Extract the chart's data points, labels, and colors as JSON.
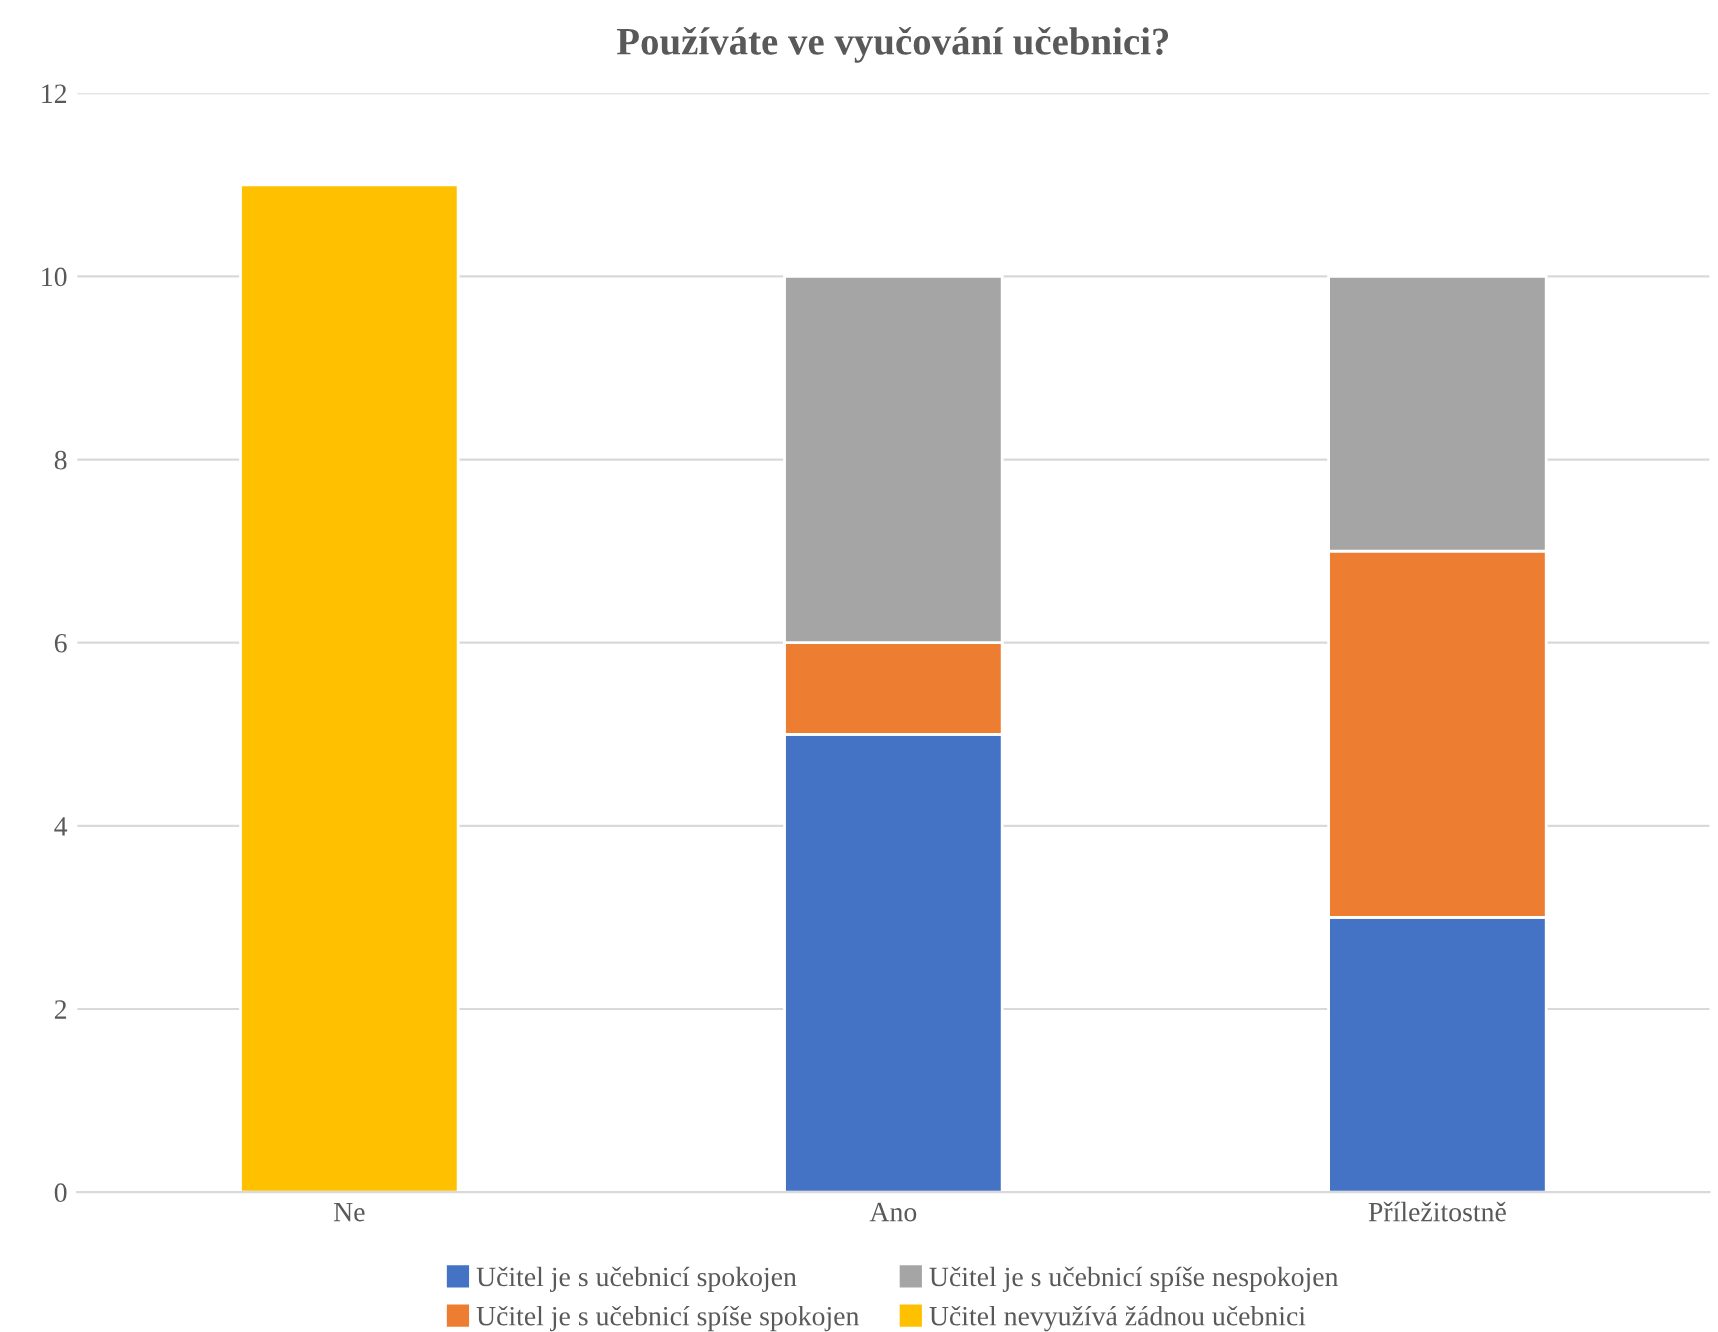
{
  "chart_data": {
    "type": "bar",
    "title": "Používáte ve vyučování učebnici?",
    "stacked": true,
    "categories": [
      "Ne",
      "Ano",
      "Příležitostně"
    ],
    "series": [
      {
        "name": "Učitel je s učebnicí spokojen",
        "color": "#4472c4",
        "values": [
          null,
          5,
          3
        ]
      },
      {
        "name": "Učitel je s učebnicí spíše spokojen",
        "color": "#ed7d31",
        "values": [
          null,
          1,
          4
        ]
      },
      {
        "name": "Učitel je s učebnicí spíše nespokojen",
        "color": "#a5a5a5",
        "values": [
          null,
          4,
          3
        ]
      },
      {
        "name": "Učitel nevyužívá žádnou učebnici",
        "color": "#ffc000",
        "values": [
          11,
          null,
          null
        ]
      }
    ],
    "ylim": [
      0,
      12
    ],
    "yticks": [
      0,
      2,
      4,
      6,
      8,
      10,
      12
    ],
    "grid": "y",
    "legend": "bottom"
  }
}
